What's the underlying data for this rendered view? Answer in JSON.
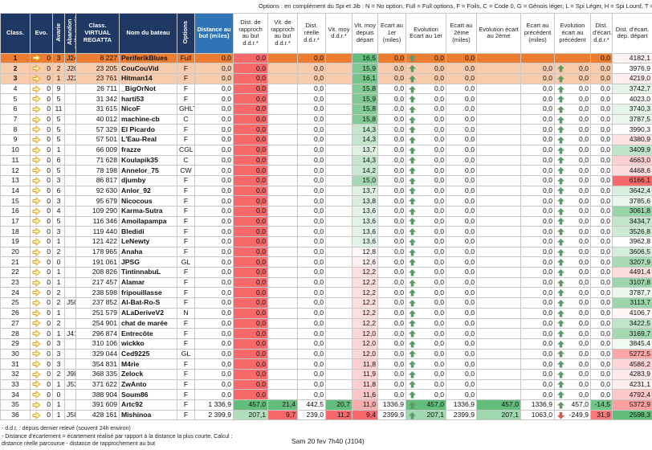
{
  "notes": {
    "options": "Options : en complément du Spi et Jib : N = No option, Full = Full options, F = Foils, C = Code 0, G = Génois léger, L = Spi Léger, H = Spi Lourd, T = Trinquette, W = Winchs Pro",
    "footer": [
      "- d.d.r. : depuis dernier relevé (souvent 24h environ)",
      "- Distance d'écartement = écartement réalisé par rapport à la distance la plus courte. Calcul :",
      "distance réelle parcourue - distance de rapprochement au but"
    ],
    "date": "Sam 20 fev 7h40 (J104)"
  },
  "table": {
    "headers": [
      "Class.",
      "Evo.",
      "Avarie",
      "Abandon suite avarie",
      "Class. VIRTUAL REGATTA",
      "Nom du bateau",
      "Options",
      "Distance au but (miles)",
      "Dist. de rapproch au but d.d.r.*",
      "Vit. de rapproch au but d.d.r.*",
      "Dist. réelle d.d.r.*",
      "Vit. moy d.d.r.*",
      "Vit. moy depuis départ",
      "Ecart au 1er (miles)",
      "Evolution Ecart au 1er",
      "Ecart au 2ème (miles)",
      "Evolution écart au 2ème",
      "Ecart au précédent (miles)",
      "Evolution écart au précédent",
      "Dist. d'écart. d.d.r.*",
      "Dist. d'écart. dep. départ"
    ],
    "rows": [
      [
        "1",
        "0",
        "3",
        "J24",
        "8 227",
        "PeriferikBlues",
        "Full",
        "0,0",
        "0,0",
        null,
        "0,0",
        null,
        "16,5",
        "0,0",
        "0,0",
        "0,0",
        null,
        null,
        null,
        "0,0",
        "4182,1"
      ],
      [
        "2",
        "0",
        "2",
        "J20",
        "23 205",
        "CouCouVid",
        "F",
        "0,0",
        "0,0",
        null,
        "0,0",
        null,
        "15,9",
        "0,0",
        "0,0",
        "0,0",
        null,
        "0,0",
        "0,0",
        "0,0",
        "3976,9"
      ],
      [
        "3",
        "0",
        "1",
        "J22",
        "23 761",
        "Hitman14",
        "F",
        "0,0",
        "0,0",
        null,
        "0,0",
        null,
        "16,1",
        "0,0",
        "0,0",
        "0,0",
        null,
        "0,0",
        "0,0",
        "0,0",
        "4219,0"
      ],
      [
        "4",
        "0",
        "9",
        null,
        "26 711",
        "_BigOrNot",
        "F",
        "0,0",
        "0,0",
        null,
        "0,0",
        null,
        "15,8",
        "0,0",
        "0,0",
        "0,0",
        null,
        "0,0",
        "0,0",
        "0,0",
        "3742,7"
      ],
      [
        "5",
        "0",
        "5",
        null,
        "31 342",
        "harti53",
        "F",
        "0,0",
        "0,0",
        null,
        "0,0",
        null,
        "15,9",
        "0,0",
        "0,0",
        "0,0",
        null,
        "0,0",
        "0,0",
        "0,0",
        "4023,0"
      ],
      [
        "6",
        "0",
        "11",
        null,
        "31 615",
        "NicoF",
        "GHLT",
        "0,0",
        "0,0",
        null,
        "0,0",
        null,
        "15,8",
        "0,0",
        "0,0",
        "0,0",
        null,
        "0,0",
        "0,0",
        "0,0",
        "3740,3"
      ],
      [
        "7",
        "0",
        "5",
        null,
        "40 012",
        "machine-cb",
        "C",
        "0,0",
        "0,0",
        null,
        "0,0",
        null,
        "15,8",
        "0,0",
        "0,0",
        "0,0",
        null,
        "0,0",
        "0,0",
        "0,0",
        "3787,5"
      ],
      [
        "8",
        "0",
        "5",
        null,
        "57 329",
        "El Picardo",
        "F",
        "0,0",
        "0,0",
        null,
        "0,0",
        null,
        "14,3",
        "0,0",
        "0,0",
        "0,0",
        null,
        "0,0",
        "0,0",
        "0,0",
        "3990,3"
      ],
      [
        "9",
        "0",
        "5",
        null,
        "57 501",
        "L'Eau-Real",
        "F",
        "0,0",
        "0,0",
        null,
        "0,0",
        null,
        "14,3",
        "0,0",
        "0,0",
        "0,0",
        null,
        "0,0",
        "0,0",
        "0,0",
        "4380,9"
      ],
      [
        "10",
        "0",
        "1",
        null,
        "66 009",
        "frazze",
        "CGL",
        "0,0",
        "0,0",
        null,
        "0,0",
        null,
        "13,7",
        "0,0",
        "0,0",
        "0,0",
        null,
        "0,0",
        "0,0",
        "0,0",
        "3409,9"
      ],
      [
        "11",
        "0",
        "6",
        null,
        "71 628",
        "Koulapik35",
        "C",
        "0,0",
        "0,0",
        null,
        "0,0",
        null,
        "14,3",
        "0,0",
        "0,0",
        "0,0",
        null,
        "0,0",
        "0,0",
        "0,0",
        "4663,0"
      ],
      [
        "12",
        "0",
        "5",
        null,
        "78 198",
        "Annelor_75",
        "CW",
        "0,0",
        "0,0",
        null,
        "0,0",
        null,
        "14,2",
        "0,0",
        "0,0",
        "0,0",
        null,
        "0,0",
        "0,0",
        "0,0",
        "4468,6"
      ],
      [
        "13",
        "0",
        "3",
        null,
        "86 817",
        "djumby",
        "F",
        "0,0",
        "0,0",
        null,
        "0,0",
        null,
        "15,0",
        "0,0",
        "0,0",
        "0,0",
        null,
        "0,0",
        "0,0",
        "0,0",
        "6166,1"
      ],
      [
        "14",
        "0",
        "6",
        null,
        "92 630",
        "Anlor_92",
        "F",
        "0,0",
        "0,0",
        null,
        "0,0",
        null,
        "13,7",
        "0,0",
        "0,0",
        "0,0",
        null,
        "0,0",
        "0,0",
        "0,0",
        "3642,4"
      ],
      [
        "15",
        "0",
        "3",
        null,
        "95 679",
        "Nicocous",
        "F",
        "0,0",
        "0,0",
        null,
        "0,0",
        null,
        "13,8",
        "0,0",
        "0,0",
        "0,0",
        null,
        "0,0",
        "0,0",
        "0,0",
        "3785,6"
      ],
      [
        "16",
        "0",
        "4",
        null,
        "109 290",
        "Karma-Sutra",
        "F",
        "0,0",
        "0,0",
        null,
        "0,0",
        null,
        "13,6",
        "0,0",
        "0,0",
        "0,0",
        null,
        "0,0",
        "0,0",
        "0,0",
        "3061,8"
      ],
      [
        "17",
        "0",
        "5",
        null,
        "116 346",
        "Amoilapampa",
        "F",
        "0,0",
        "0,0",
        null,
        "0,0",
        null,
        "13,6",
        "0,0",
        "0,0",
        "0,0",
        null,
        "0,0",
        "0,0",
        "0,0",
        "3434,7"
      ],
      [
        "18",
        "0",
        "3",
        null,
        "119 440",
        "Bledidi",
        "F",
        "0,0",
        "0,0",
        null,
        "0,0",
        null,
        "13,6",
        "0,0",
        "0,0",
        "0,0",
        null,
        "0,0",
        "0,0",
        "0,0",
        "3526,8"
      ],
      [
        "19",
        "0",
        "1",
        null,
        "121 422",
        "LeNewty",
        "F",
        "0,0",
        "0,0",
        null,
        "0,0",
        null,
        "13,6",
        "0,0",
        "0,0",
        "0,0",
        null,
        "0,0",
        "0,0",
        "0,0",
        "3962,8"
      ],
      [
        "20",
        "0",
        "2",
        null,
        "178 965",
        "Anaha",
        "F",
        "0,0",
        "0,0",
        null,
        "0,0",
        null,
        "12,8",
        "0,0",
        "0,0",
        "0,0",
        null,
        "0,0",
        "0,0",
        "0,0",
        "3606,5"
      ],
      [
        "21",
        "0",
        "0",
        null,
        "191 061",
        "JPSG",
        "GL",
        "0,0",
        "0,0",
        null,
        "0,0",
        null,
        "12,6",
        "0,0",
        "0,0",
        "0,0",
        null,
        "0,0",
        "0,0",
        "0,0",
        "3207,9"
      ],
      [
        "22",
        "0",
        "1",
        null,
        "208 826",
        "TintinnabuL",
        "F",
        "0,0",
        "0,0",
        null,
        "0,0",
        null,
        "12,2",
        "0,0",
        "0,0",
        "0,0",
        null,
        "0,0",
        "0,0",
        "0,0",
        "4491,4"
      ],
      [
        "23",
        "0",
        "1",
        null,
        "217 457",
        "Alamar",
        "F",
        "0,0",
        "0,0",
        null,
        "0,0",
        null,
        "12,2",
        "0,0",
        "0,0",
        "0,0",
        null,
        "0,0",
        "0,0",
        "0,0",
        "3107,8"
      ],
      [
        "24",
        "0",
        "2",
        null,
        "238 598",
        "fripouillasse",
        "F",
        "0,0",
        "0,0",
        null,
        "0,0",
        null,
        "12,2",
        "0,0",
        "0,0",
        "0,0",
        null,
        "0,0",
        "0,0",
        "0,0",
        "3787,7"
      ],
      [
        "25",
        "0",
        "2",
        "J50",
        "237 852",
        "Al-Bat-Ro-S",
        "F",
        "0,0",
        "0,0",
        null,
        "0,0",
        null,
        "12,2",
        "0,0",
        "0,0",
        "0,0",
        null,
        "0,0",
        "0,0",
        "0,0",
        "3113,7"
      ],
      [
        "26",
        "0",
        "1",
        null,
        "251 579",
        "ALaDeriveV2",
        "N",
        "0,0",
        "0,0",
        null,
        "0,0",
        null,
        "12,2",
        "0,0",
        "0,0",
        "0,0",
        null,
        "0,0",
        "0,0",
        "0,0",
        "4106,7"
      ],
      [
        "27",
        "0",
        "2",
        null,
        "254 901",
        "chat de marée",
        "F",
        "0,0",
        "0,0",
        null,
        "0,0",
        null,
        "12,2",
        "0,0",
        "0,0",
        "0,0",
        null,
        "0,0",
        "0,0",
        "0,0",
        "3422,5"
      ],
      [
        "28",
        "0",
        "1",
        "J41",
        "296 874",
        "Entrecôte",
        "F",
        "0,0",
        "0,0",
        null,
        "0,0",
        null,
        "12,0",
        "0,0",
        "0,0",
        "0,0",
        null,
        "0,0",
        "0,0",
        "0,0",
        "3169,7"
      ],
      [
        "29",
        "0",
        "3",
        null,
        "310 106",
        "wickko",
        "F",
        "0,0",
        "0,0",
        null,
        "0,0",
        null,
        "12,0",
        "0,0",
        "0,0",
        "0,0",
        null,
        "0,0",
        "0,0",
        "0,0",
        "3845,4"
      ],
      [
        "30",
        "0",
        "3",
        null,
        "329 044",
        "Ced9225",
        "GL",
        "0,0",
        "0,0",
        null,
        "0,0",
        null,
        "12,0",
        "0,0",
        "0,0",
        "0,0",
        null,
        "0,0",
        "0,0",
        "0,0",
        "5272,5"
      ],
      [
        "31",
        "0",
        "3",
        null,
        "354 831",
        "M4rie",
        "F",
        "0,0",
        "0,0",
        null,
        "0,0",
        null,
        "11,8",
        "0,0",
        "0,0",
        "0,0",
        null,
        "0,0",
        "0,0",
        "0,0",
        "4586,2"
      ],
      [
        "32",
        "0",
        "2",
        "J98",
        "368 335",
        "Zelock",
        "F",
        "0,0",
        "0,0",
        null,
        "0,0",
        null,
        "11,9",
        "0,0",
        "0,0",
        "0,0",
        null,
        "0,0",
        "0,0",
        "0,0",
        "4283,9"
      ],
      [
        "33",
        "0",
        "1",
        "J53",
        "371 622",
        "ZwAnto",
        "F",
        "0,0",
        "0,0",
        null,
        "0,0",
        null,
        "11,8",
        "0,0",
        "0,0",
        "0,0",
        null,
        "0,0",
        "0,0",
        "0,0",
        "4231,1"
      ],
      [
        "34",
        "0",
        "0",
        null,
        "388 904",
        "Soum86",
        "F",
        "0,0",
        "0,0",
        null,
        "0,0",
        null,
        "11,6",
        "0,0",
        "0,0",
        "0,0",
        null,
        "0,0",
        "0,0",
        "0,0",
        "4792,4"
      ],
      [
        "35",
        "0",
        "1",
        null,
        "391 609",
        "Artc92",
        "F",
        "1 336,9",
        "457,0",
        "21,4",
        "442,5",
        "20,7",
        "11,0",
        "1336,9",
        "457,0",
        "1336,9",
        "457,0",
        "1336,9",
        "457,0",
        "-14,5",
        "5372,9"
      ],
      [
        "36",
        "0",
        "1",
        "J58",
        "428 161",
        "Mishinoa",
        "F",
        "2 399,9",
        "207,1",
        "9,7",
        "239,0",
        "11,2",
        "9,4",
        "2399,9",
        "207,1",
        "2399,9",
        "207,1",
        "1063,0",
        "-249,9",
        "31,9",
        "2598,3"
      ]
    ]
  }
}
